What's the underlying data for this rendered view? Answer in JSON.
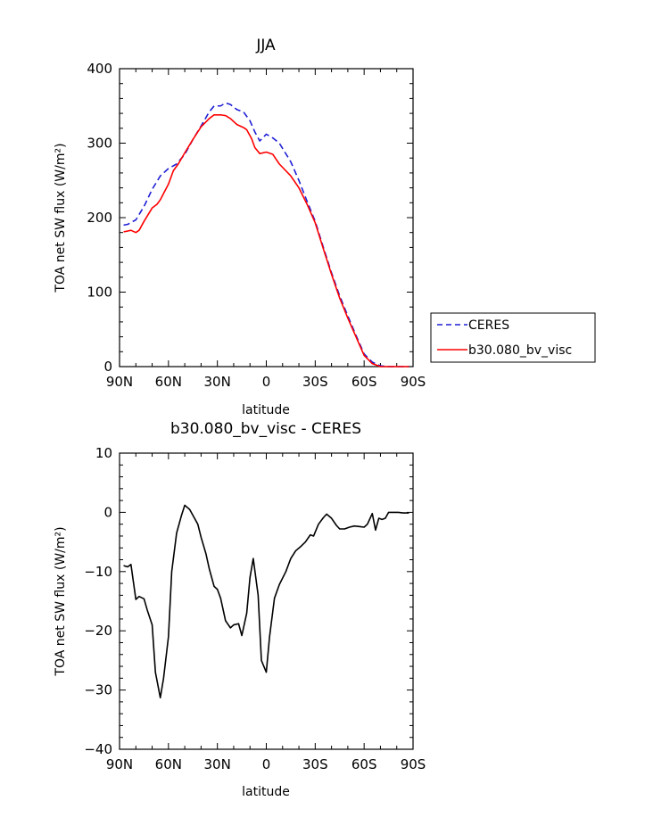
{
  "chart_data": [
    {
      "type": "line",
      "title": "JJA",
      "xlabel": "latitude",
      "ylabel": "TOA net SW flux (W/m²)",
      "xlim": [
        90,
        -90
      ],
      "ylim": [
        0,
        400
      ],
      "x_ticks": [
        {
          "value": 90,
          "label": "90N"
        },
        {
          "value": 60,
          "label": "60N"
        },
        {
          "value": 30,
          "label": "30N"
        },
        {
          "value": 0,
          "label": "0"
        },
        {
          "value": -30,
          "label": "30S"
        },
        {
          "value": -60,
          "label": "60S"
        },
        {
          "value": -90,
          "label": "90S"
        }
      ],
      "y_ticks": [
        {
          "value": 0,
          "label": "0"
        },
        {
          "value": 100,
          "label": "100"
        },
        {
          "value": 200,
          "label": "200"
        },
        {
          "value": 300,
          "label": "300"
        },
        {
          "value": 400,
          "label": "400"
        }
      ],
      "grid": false,
      "legend_position": "right",
      "series": [
        {
          "name": "CERES",
          "color": "#1f1fd6",
          "dash": true,
          "points": [
            [
              87.5,
              190
            ],
            [
              85,
              191
            ],
            [
              80,
              197
            ],
            [
              75,
              215
            ],
            [
              70,
              238
            ],
            [
              65,
              256
            ],
            [
              60,
              266
            ],
            [
              55,
              272
            ],
            [
              50,
              285
            ],
            [
              45,
              305
            ],
            [
              40,
              323
            ],
            [
              35,
              342
            ],
            [
              32,
              350
            ],
            [
              28,
              350
            ],
            [
              25,
              354
            ],
            [
              22,
              352
            ],
            [
              18,
              345
            ],
            [
              14,
              342
            ],
            [
              10,
              330
            ],
            [
              7,
              315
            ],
            [
              4,
              303
            ],
            [
              0,
              312
            ],
            [
              -4,
              307
            ],
            [
              -8,
              300
            ],
            [
              -15,
              275
            ],
            [
              -20,
              250
            ],
            [
              -25,
              222
            ],
            [
              -30,
              195
            ],
            [
              -35,
              160
            ],
            [
              -40,
              126
            ],
            [
              -45,
              95
            ],
            [
              -50,
              68
            ],
            [
              -55,
              42
            ],
            [
              -60,
              17
            ],
            [
              -65,
              6
            ],
            [
              -70,
              1
            ],
            [
              -75,
              0
            ],
            [
              -80,
              0
            ],
            [
              -85,
              0
            ],
            [
              -87.5,
              0
            ]
          ]
        },
        {
          "name": "b30.080_bv_visc",
          "color": "#ff0000",
          "dash": false,
          "points": [
            [
              87.5,
              181
            ],
            [
              85,
              182
            ],
            [
              83,
              183
            ],
            [
              80,
              180
            ],
            [
              78,
              183
            ],
            [
              75,
              195
            ],
            [
              70,
              213
            ],
            [
              67,
              218
            ],
            [
              65,
              224
            ],
            [
              60,
              245
            ],
            [
              57,
              263
            ],
            [
              54,
              272
            ],
            [
              50,
              287
            ],
            [
              45,
              305
            ],
            [
              40,
              322
            ],
            [
              35,
              333
            ],
            [
              32,
              338
            ],
            [
              28,
              338
            ],
            [
              25,
              337
            ],
            [
              22,
              333
            ],
            [
              18,
              325
            ],
            [
              14,
              321
            ],
            [
              12,
              318
            ],
            [
              9,
              306
            ],
            [
              7,
              294
            ],
            [
              4,
              286
            ],
            [
              0,
              288
            ],
            [
              -4,
              285
            ],
            [
              -8,
              272
            ],
            [
              -15,
              256
            ],
            [
              -20,
              240
            ],
            [
              -25,
              218
            ],
            [
              -30,
              193
            ],
            [
              -35,
              158
            ],
            [
              -40,
              124
            ],
            [
              -45,
              92
            ],
            [
              -50,
              65
            ],
            [
              -55,
              40
            ],
            [
              -60,
              15
            ],
            [
              -65,
              4
            ],
            [
              -70,
              0
            ],
            [
              -75,
              0
            ],
            [
              -80,
              0
            ],
            [
              -85,
              0
            ],
            [
              -87.5,
              0
            ]
          ]
        }
      ]
    },
    {
      "type": "line",
      "title": "b30.080_bv_visc - CERES",
      "xlabel": "latitude",
      "ylabel": "TOA net SW flux (W/m²)",
      "xlim": [
        90,
        -90
      ],
      "ylim": [
        -40,
        10
      ],
      "x_ticks": [
        {
          "value": 90,
          "label": "90N"
        },
        {
          "value": 60,
          "label": "60N"
        },
        {
          "value": 30,
          "label": "30N"
        },
        {
          "value": 0,
          "label": "0"
        },
        {
          "value": -30,
          "label": "30S"
        },
        {
          "value": -60,
          "label": "60S"
        },
        {
          "value": -90,
          "label": "90S"
        }
      ],
      "y_ticks": [
        {
          "value": -40,
          "label": "-40"
        },
        {
          "value": -30,
          "label": "-30"
        },
        {
          "value": -20,
          "label": "-20"
        },
        {
          "value": -10,
          "label": "-10"
        },
        {
          "value": 0,
          "label": "0"
        },
        {
          "value": 10,
          "label": "10"
        }
      ],
      "grid": false,
      "series": [
        {
          "color": "#000000",
          "dash": false,
          "points": [
            [
              87.5,
              -9
            ],
            [
              85,
              -9.2
            ],
            [
              83,
              -8.8
            ],
            [
              80,
              -14.7
            ],
            [
              78,
              -14.2
            ],
            [
              75,
              -14.6
            ],
            [
              73,
              -16.5
            ],
            [
              70,
              -19
            ],
            [
              68,
              -27
            ],
            [
              65,
              -31.3
            ],
            [
              63,
              -28
            ],
            [
              60,
              -21
            ],
            [
              58,
              -10
            ],
            [
              55,
              -3.5
            ],
            [
              52,
              -0.5
            ],
            [
              50,
              1.2
            ],
            [
              47,
              0.5
            ],
            [
              45,
              -0.5
            ],
            [
              42,
              -2
            ],
            [
              40,
              -4.2
            ],
            [
              37,
              -7
            ],
            [
              35,
              -9.5
            ],
            [
              32,
              -12.5
            ],
            [
              30,
              -13
            ],
            [
              28,
              -14.5
            ],
            [
              25,
              -18.3
            ],
            [
              22,
              -19.5
            ],
            [
              20,
              -19
            ],
            [
              17,
              -18.8
            ],
            [
              15,
              -20.8
            ],
            [
              12,
              -17
            ],
            [
              10,
              -11
            ],
            [
              8,
              -7.8
            ],
            [
              5,
              -14
            ],
            [
              3,
              -25
            ],
            [
              0,
              -27
            ],
            [
              -2,
              -21
            ],
            [
              -5,
              -14.5
            ],
            [
              -8,
              -12.2
            ],
            [
              -12,
              -10
            ],
            [
              -15,
              -7.8
            ],
            [
              -18,
              -6.5
            ],
            [
              -21,
              -5.8
            ],
            [
              -24,
              -5
            ],
            [
              -27,
              -3.8
            ],
            [
              -29,
              -4
            ],
            [
              -32,
              -2
            ],
            [
              -35,
              -0.9
            ],
            [
              -37,
              -0.3
            ],
            [
              -40,
              -1
            ],
            [
              -43,
              -2.2
            ],
            [
              -45,
              -2.8
            ],
            [
              -48,
              -2.8
            ],
            [
              -51,
              -2.5
            ],
            [
              -54,
              -2.3
            ],
            [
              -57,
              -2.4
            ],
            [
              -60,
              -2.5
            ],
            [
              -62,
              -2
            ],
            [
              -65,
              -0.2
            ],
            [
              -67,
              -3
            ],
            [
              -69,
              -1
            ],
            [
              -71,
              -1.2
            ],
            [
              -73,
              -1
            ],
            [
              -75,
              0
            ],
            [
              -78,
              0
            ],
            [
              -81,
              0
            ],
            [
              -84,
              -0.1
            ],
            [
              -87.5,
              -0.1
            ]
          ]
        }
      ]
    }
  ]
}
